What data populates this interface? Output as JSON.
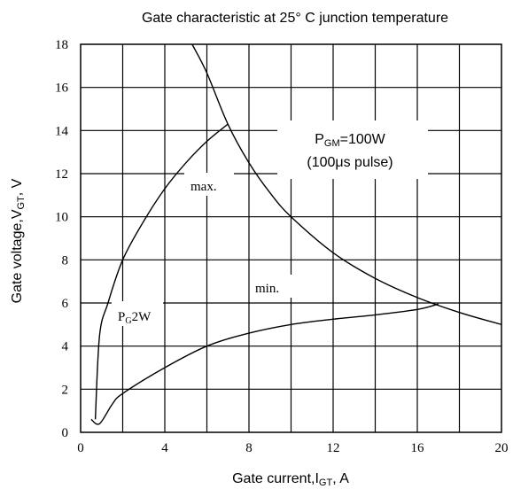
{
  "chart_data": {
    "type": "line",
    "title": "Gate characteristic at 25° C junction temperature",
    "xlabel": {
      "main": "Gate current,I",
      "sub": "GT",
      "unit": ",  A"
    },
    "ylabel": {
      "main": "Gate voltage,V",
      "sub": "GT",
      "unit": ",  V"
    },
    "xlim": [
      0,
      20
    ],
    "ylim": [
      0,
      18
    ],
    "xticks": [
      0,
      4,
      8,
      12,
      16,
      20
    ],
    "yticks": [
      0,
      2,
      4,
      6,
      8,
      10,
      12,
      14,
      16,
      18
    ],
    "grid": true,
    "series": [
      {
        "name": "max.",
        "x": [
          0.7,
          0.9,
          1.3,
          2.0,
          3.0,
          4.0,
          5.0,
          6.0,
          7.0
        ],
        "y": [
          0.6,
          4.5,
          6.0,
          8.0,
          9.8,
          11.3,
          12.5,
          13.5,
          14.3
        ]
      },
      {
        "name": "min.",
        "x": [
          0.5,
          0.9,
          1.5,
          2.0,
          4.0,
          6.0,
          8.0,
          10.0,
          12.0,
          14.0,
          16.0,
          17.0
        ],
        "y": [
          0.6,
          0.4,
          1.3,
          1.8,
          3.0,
          4.0,
          4.6,
          5.0,
          5.25,
          5.45,
          5.7,
          5.95
        ]
      },
      {
        "name": "PGM=100W (100μs pulse)",
        "x": [
          5.3,
          6.0,
          7.0,
          8.0,
          9.0,
          10.0,
          12.0,
          14.0,
          16.0,
          18.0,
          20.0
        ],
        "y": [
          18.0,
          16.67,
          14.29,
          12.5,
          11.11,
          10.0,
          8.33,
          7.14,
          6.25,
          5.56,
          5.0
        ]
      }
    ],
    "annotations": {
      "max": "max.",
      "min": "min.",
      "pgm_main": "P",
      "pgm_sub": "GM",
      "pgm_tail": "=100W",
      "pgm_line2": "(100μs pulse)",
      "pg_main": "P",
      "pg_sub": "G",
      "pg_tail": "2W"
    }
  }
}
